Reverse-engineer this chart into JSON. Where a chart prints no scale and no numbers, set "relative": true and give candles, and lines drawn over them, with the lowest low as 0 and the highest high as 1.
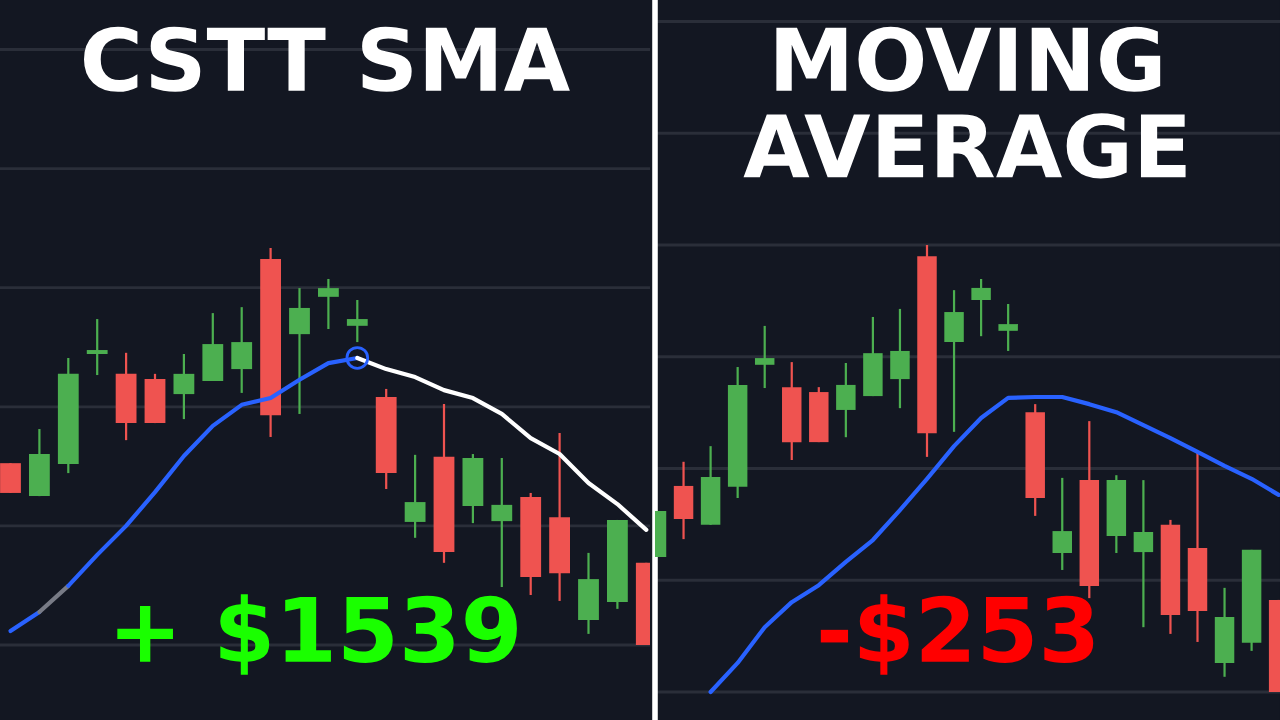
{
  "chart_data": [
    {
      "type": "candlestick",
      "title": "CSTT SMA",
      "relative": true,
      "grid": "y",
      "tick_labels": false,
      "categories": [
        null,
        null,
        null,
        null,
        null,
        null,
        null,
        null,
        null,
        null,
        null,
        null,
        null,
        null,
        null,
        null,
        null,
        null,
        null,
        null,
        null,
        null,
        null
      ],
      "ohlc": [
        [
          0.458,
          0.458,
          0.383,
          0.383
        ],
        [
          0.375,
          0.544,
          0.375,
          0.481
        ],
        [
          0.456,
          0.723,
          0.433,
          0.683
        ],
        [
          0.733,
          0.821,
          0.68,
          0.743
        ],
        [
          0.683,
          0.736,
          0.516,
          0.559
        ],
        [
          0.67,
          0.683,
          0.559,
          0.559
        ],
        [
          0.632,
          0.733,
          0.569,
          0.683
        ],
        [
          0.665,
          0.836,
          0.665,
          0.758
        ],
        [
          0.695,
          0.851,
          0.635,
          0.763
        ],
        [
          0.972,
          1,
          0.524,
          0.579
        ],
        [
          0.783,
          0.899,
          0.582,
          0.849
        ],
        [
          0.877,
          0.922,
          0.796,
          0.899
        ],
        [
          0.804,
          0.869,
          0.763,
          0.821
        ],
        [
          0.625,
          0.645,
          0.393,
          0.433
        ],
        [
          0.31,
          0.479,
          0.27,
          0.36
        ],
        [
          0.474,
          0.607,
          0.207,
          0.234
        ],
        [
          0.35,
          0.481,
          0.307,
          0.471
        ],
        [
          0.312,
          0.471,
          0.146,
          0.353
        ],
        [
          0.373,
          0.383,
          0.126,
          0.171
        ],
        [
          0.322,
          0.534,
          0.111,
          0.181
        ],
        [
          0.063,
          0.232,
          0.028,
          0.166
        ],
        [
          0.108,
          0.315,
          0.091,
          0.315
        ],
        [
          0.207,
          0.207,
          0,
          0
        ]
      ],
      "colors": [
        "#ef5350",
        "#4caf50",
        "#4caf50",
        "#4caf50",
        "#ef5350",
        "#ef5350",
        "#4caf50",
        "#4caf50",
        "#4caf50",
        "#ef5350",
        "#4caf50",
        "#4caf50",
        "#4caf50",
        "#ef5350",
        "#4caf50",
        "#ef5350",
        "#4caf50",
        "#4caf50",
        "#ef5350",
        "#ef5350",
        "#4caf50",
        "#4caf50",
        "#ef5350"
      ],
      "series": [
        {
          "type": "line",
          "color": "#2962ff",
          "values": [
            0.035,
            0.083,
            null,
            null,
            null,
            null,
            null,
            null,
            null,
            null,
            null,
            null,
            null,
            null,
            null,
            null,
            null,
            null,
            null,
            null,
            null,
            null,
            null
          ]
        },
        {
          "type": "line",
          "color": "#787b86",
          "values": [
            null,
            0.083,
            0.149,
            null,
            null,
            null,
            null,
            null,
            null,
            null,
            null,
            null,
            null,
            null,
            null,
            null,
            null,
            null,
            null,
            null,
            null,
            null,
            null
          ]
        },
        {
          "type": "line",
          "color": "#2962ff",
          "values": [
            null,
            null,
            0.149,
            0.227,
            0.3,
            0.385,
            0.476,
            0.552,
            0.605,
            0.622,
            0.668,
            0.71,
            0.723,
            null,
            null,
            null,
            null,
            null,
            null,
            null,
            null,
            null,
            null
          ]
        },
        {
          "type": "line",
          "color": "#ffffff",
          "values": [
            null,
            null,
            null,
            null,
            null,
            null,
            null,
            null,
            null,
            null,
            null,
            null,
            0.723,
            0.695,
            0.675,
            0.642,
            0.622,
            0.582,
            0.521,
            0.481,
            0.408,
            0.355,
            0.29
          ]
        },
        {
          "type": "scatter",
          "color": "#2962ff",
          "marker": "circle",
          "values": [
            null,
            null,
            null,
            null,
            null,
            null,
            null,
            null,
            null,
            null,
            null,
            null,
            0.723,
            null,
            null,
            null,
            null,
            null,
            null,
            null,
            null,
            null,
            null
          ]
        }
      ],
      "annotations": [
        "+ $1539"
      ]
    },
    {
      "type": "candlestick",
      "title": "MOVING AVERAGE",
      "relative": true,
      "grid": "y",
      "tick_labels": false,
      "categories": [
        null,
        null,
        null,
        null,
        null,
        null,
        null,
        null,
        null,
        null,
        null,
        null,
        null,
        null,
        null,
        null,
        null,
        null,
        null,
        null,
        null,
        null,
        null,
        null
      ],
      "ohlc": [
        [
          0.302,
          0.405,
          0.302,
          0.405
        ],
        [
          0.461,
          0.515,
          0.342,
          0.387
        ],
        [
          0.374,
          0.55,
          0.374,
          0.481
        ],
        [
          0.459,
          0.727,
          0.434,
          0.687
        ],
        [
          0.732,
          0.819,
          0.68,
          0.747
        ],
        [
          0.682,
          0.738,
          0.519,
          0.559
        ],
        [
          0.671,
          0.682,
          0.559,
          0.559
        ],
        [
          0.631,
          0.736,
          0.57,
          0.687
        ],
        [
          0.662,
          0.839,
          0.662,
          0.758
        ],
        [
          0.7,
          0.857,
          0.635,
          0.763
        ],
        [
          0.975,
          1,
          0.526,
          0.579
        ],
        [
          0.783,
          0.899,
          0.582,
          0.85
        ],
        [
          0.877,
          0.924,
          0.796,
          0.904
        ],
        [
          0.808,
          0.868,
          0.763,
          0.823
        ],
        [
          0.626,
          0.644,
          0.394,
          0.434
        ],
        [
          0.311,
          0.479,
          0.273,
          0.36
        ],
        [
          0.474,
          0.606,
          0.21,
          0.237
        ],
        [
          0.349,
          0.485,
          0.311,
          0.474
        ],
        [
          0.313,
          0.474,
          0.145,
          0.358
        ],
        [
          0.374,
          0.385,
          0.13,
          0.172
        ],
        [
          0.322,
          0.535,
          0.112,
          0.181
        ],
        [
          0.065,
          0.233,
          0.034,
          0.168
        ],
        [
          0.11,
          0.318,
          0.092,
          0.318
        ],
        [
          0.206,
          0.206,
          0,
          0
        ]
      ],
      "colors": [
        "#4caf50",
        "#ef5350",
        "#4caf50",
        "#4caf50",
        "#4caf50",
        "#ef5350",
        "#ef5350",
        "#4caf50",
        "#4caf50",
        "#4caf50",
        "#ef5350",
        "#4caf50",
        "#4caf50",
        "#4caf50",
        "#ef5350",
        "#4caf50",
        "#ef5350",
        "#4caf50",
        "#4caf50",
        "#ef5350",
        "#ef5350",
        "#4caf50",
        "#4caf50",
        "#ef5350"
      ],
      "series": [
        {
          "type": "line",
          "color": "#2962ff",
          "values": [
            null,
            null,
            0,
            0.065,
            0.145,
            0.201,
            0.239,
            0.291,
            0.34,
            0.407,
            0.477,
            0.55,
            0.613,
            0.658,
            0.66,
            0.66,
            0.644,
            0.626,
            0.597,
            0.568,
            0.537,
            0.506,
            0.477,
            0.441
          ]
        }
      ],
      "annotations": [
        "-$253"
      ]
    }
  ]
}
